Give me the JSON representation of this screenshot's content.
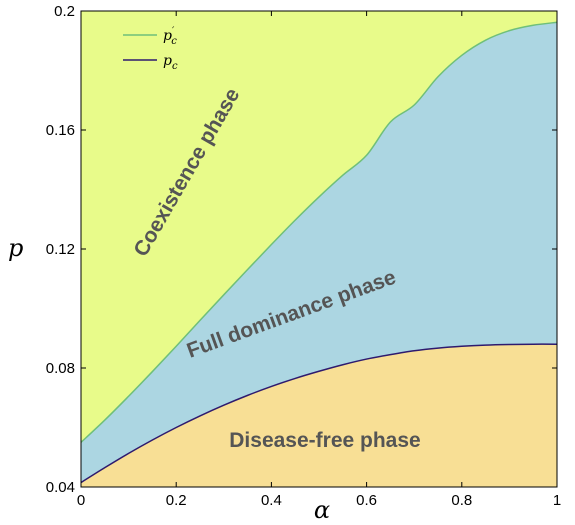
{
  "chart_data": {
    "type": "area",
    "xlabel": "α",
    "ylabel": "p",
    "xlim": [
      0,
      1
    ],
    "ylim": [
      0.04,
      0.2
    ],
    "x_ticks": [
      0,
      0.2,
      0.4,
      0.6,
      0.8,
      1
    ],
    "x_tick_labels": [
      "0",
      "0.2",
      "0.4",
      "0.6",
      "0.8",
      "1"
    ],
    "y_ticks": [
      0.04,
      0.08,
      0.12,
      0.16,
      0.2
    ],
    "y_tick_labels": [
      "0.04",
      "0.08",
      "0.12",
      "0.16",
      "0.2"
    ],
    "grid": false,
    "legend_position": "top-left",
    "series": [
      {
        "name": "p'_c",
        "legend_main": "p",
        "legend_sup": "′",
        "legend_sub": "c",
        "color": "#6fbf7a",
        "x": [
          0,
          0.05,
          0.1,
          0.15,
          0.2,
          0.25,
          0.3,
          0.35,
          0.4,
          0.45,
          0.5,
          0.55,
          0.6,
          0.65,
          0.7,
          0.75,
          0.8,
          0.85,
          0.9,
          0.95,
          1
        ],
        "y": [
          0.055,
          0.0625,
          0.0705,
          0.0788,
          0.0873,
          0.096,
          0.1046,
          0.1131,
          0.1215,
          0.1297,
          0.1375,
          0.1448,
          0.1515,
          0.1627,
          0.1684,
          0.1779,
          0.1851,
          0.1902,
          0.1934,
          0.1952,
          0.1962
        ]
      },
      {
        "name": "p_c",
        "legend_main": "p",
        "legend_sup": "",
        "legend_sub": "c",
        "color": "#2e1a6e",
        "x": [
          0,
          0.05,
          0.1,
          0.15,
          0.2,
          0.25,
          0.3,
          0.35,
          0.4,
          0.45,
          0.5,
          0.55,
          0.6,
          0.65,
          0.7,
          0.75,
          0.8,
          0.85,
          0.9,
          0.95,
          1
        ],
        "y": [
          0.0415,
          0.0465,
          0.0513,
          0.0558,
          0.06,
          0.0639,
          0.0675,
          0.0708,
          0.0738,
          0.0765,
          0.0789,
          0.0811,
          0.083,
          0.0845,
          0.0858,
          0.0867,
          0.0873,
          0.0877,
          0.0879,
          0.088,
          0.088
        ]
      }
    ],
    "regions": [
      {
        "label": "Coexistence phase",
        "color": "#e8fb8a"
      },
      {
        "label": "Full dominance phase",
        "color": "#acd6e2"
      },
      {
        "label": "Disease-free phase",
        "color": "#f8df95"
      }
    ]
  }
}
